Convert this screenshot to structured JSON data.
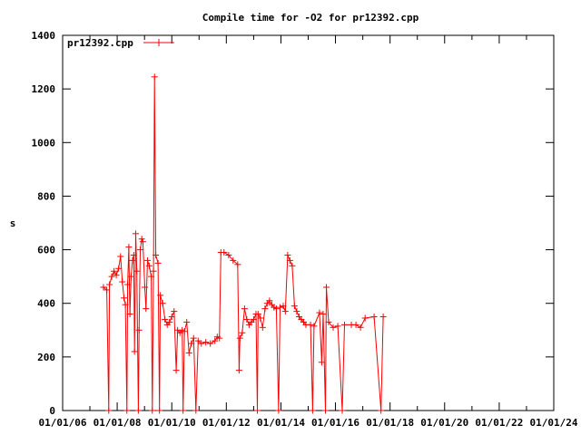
{
  "chart_data": {
    "type": "line",
    "title": "Compile time for -O2 for pr12392.cpp",
    "xlabel": "",
    "ylabel": "s",
    "xlim": [
      "2006-01-01",
      "2024-01-01"
    ],
    "ylim": [
      0,
      1400
    ],
    "x_ticks": [
      "01/01/06",
      "01/01/08",
      "01/01/10",
      "01/01/12",
      "01/01/14",
      "01/01/16",
      "01/01/18",
      "01/01/20",
      "01/01/22",
      "01/01/24"
    ],
    "y_ticks": [
      0,
      200,
      400,
      600,
      800,
      1000,
      1200,
      1400
    ],
    "grid": false,
    "legend_position": "top-left",
    "color": "#ff0000",
    "series": [
      {
        "name": "pr12392.cpp",
        "points": [
          [
            "2007-07-01",
            460
          ],
          [
            "2007-08-15",
            450
          ],
          [
            "2007-09-10",
            0
          ],
          [
            "2007-09-20",
            470
          ],
          [
            "2007-10-20",
            500
          ],
          [
            "2007-11-20",
            520
          ],
          [
            "2007-12-20",
            505
          ],
          [
            "2008-01-20",
            530
          ],
          [
            "2008-02-15",
            575
          ],
          [
            "2008-03-10",
            480
          ],
          [
            "2008-04-01",
            420
          ],
          [
            "2008-04-20",
            395
          ],
          [
            "2008-05-10",
            0
          ],
          [
            "2008-05-20",
            470
          ],
          [
            "2008-06-05",
            610
          ],
          [
            "2008-06-20",
            360
          ],
          [
            "2008-07-05",
            500
          ],
          [
            "2008-07-25",
            560
          ],
          [
            "2008-08-10",
            580
          ],
          [
            "2008-08-20",
            220
          ],
          [
            "2008-09-05",
            660
          ],
          [
            "2008-09-20",
            520
          ],
          [
            "2008-10-10",
            0
          ],
          [
            "2008-10-20",
            300
          ],
          [
            "2008-11-05",
            600
          ],
          [
            "2008-11-25",
            640
          ],
          [
            "2008-12-10",
            630
          ],
          [
            "2009-01-05",
            460
          ],
          [
            "2009-01-20",
            380
          ],
          [
            "2009-02-10",
            560
          ],
          [
            "2009-03-05",
            540
          ],
          [
            "2009-04-01",
            500
          ],
          [
            "2009-04-15",
            0
          ],
          [
            "2009-05-01",
            520
          ],
          [
            "2009-05-15",
            1245
          ],
          [
            "2009-06-01",
            580
          ],
          [
            "2009-07-01",
            550
          ],
          [
            "2009-07-20",
            0
          ],
          [
            "2009-08-01",
            430
          ],
          [
            "2009-09-01",
            400
          ],
          [
            "2009-10-01",
            340
          ],
          [
            "2009-11-01",
            320
          ],
          [
            "2009-12-01",
            330
          ],
          [
            "2010-01-01",
            350
          ],
          [
            "2010-02-01",
            370
          ],
          [
            "2010-03-01",
            150
          ],
          [
            "2010-03-20",
            300
          ],
          [
            "2010-04-20",
            290
          ],
          [
            "2010-05-20",
            300
          ],
          [
            "2010-06-01",
            0
          ],
          [
            "2010-06-20",
            295
          ],
          [
            "2010-07-20",
            330
          ],
          [
            "2010-08-20",
            215
          ],
          [
            "2010-09-20",
            250
          ],
          [
            "2010-10-20",
            270
          ],
          [
            "2010-11-20",
            0
          ],
          [
            "2010-12-20",
            260
          ],
          [
            "2011-02-01",
            250
          ],
          [
            "2011-04-01",
            255
          ],
          [
            "2011-06-01",
            250
          ],
          [
            "2011-08-01",
            260
          ],
          [
            "2011-09-01",
            275
          ],
          [
            "2011-10-01",
            270
          ],
          [
            "2011-10-20",
            590
          ],
          [
            "2011-12-01",
            590
          ],
          [
            "2012-02-01",
            580
          ],
          [
            "2012-04-01",
            560
          ],
          [
            "2012-06-01",
            545
          ],
          [
            "2012-06-20",
            150
          ],
          [
            "2012-07-01",
            270
          ],
          [
            "2012-08-01",
            290
          ],
          [
            "2012-09-01",
            380
          ],
          [
            "2012-10-01",
            340
          ],
          [
            "2012-11-01",
            320
          ],
          [
            "2012-12-01",
            330
          ],
          [
            "2013-01-01",
            340
          ],
          [
            "2013-02-01",
            360
          ],
          [
            "2013-02-20",
            0
          ],
          [
            "2013-03-01",
            360
          ],
          [
            "2013-04-01",
            345
          ],
          [
            "2013-05-01",
            310
          ],
          [
            "2013-06-01",
            380
          ],
          [
            "2013-07-01",
            400
          ],
          [
            "2013-08-01",
            410
          ],
          [
            "2013-09-01",
            395
          ],
          [
            "2013-10-01",
            385
          ],
          [
            "2013-11-01",
            380
          ],
          [
            "2013-12-01",
            0
          ],
          [
            "2013-12-20",
            385
          ],
          [
            "2014-02-01",
            390
          ],
          [
            "2014-03-01",
            370
          ],
          [
            "2014-04-01",
            580
          ],
          [
            "2014-05-01",
            560
          ],
          [
            "2014-06-01",
            540
          ],
          [
            "2014-07-01",
            390
          ],
          [
            "2014-08-01",
            370
          ],
          [
            "2014-09-01",
            350
          ],
          [
            "2014-10-01",
            340
          ],
          [
            "2014-11-01",
            330
          ],
          [
            "2014-12-01",
            320
          ],
          [
            "2015-02-01",
            320
          ],
          [
            "2015-03-01",
            0
          ],
          [
            "2015-03-20",
            315
          ],
          [
            "2015-06-01",
            365
          ],
          [
            "2015-07-01",
            180
          ],
          [
            "2015-07-20",
            360
          ],
          [
            "2015-08-20",
            0
          ],
          [
            "2015-09-01",
            460
          ],
          [
            "2015-10-01",
            330
          ],
          [
            "2015-12-01",
            310
          ],
          [
            "2016-02-01",
            315
          ],
          [
            "2016-04-01",
            0
          ],
          [
            "2016-05-01",
            320
          ],
          [
            "2016-08-01",
            320
          ],
          [
            "2016-10-01",
            320
          ],
          [
            "2016-12-01",
            310
          ],
          [
            "2017-02-01",
            345
          ],
          [
            "2017-06-01",
            350
          ],
          [
            "2017-09-01",
            0
          ],
          [
            "2017-10-01",
            350
          ]
        ]
      }
    ]
  }
}
